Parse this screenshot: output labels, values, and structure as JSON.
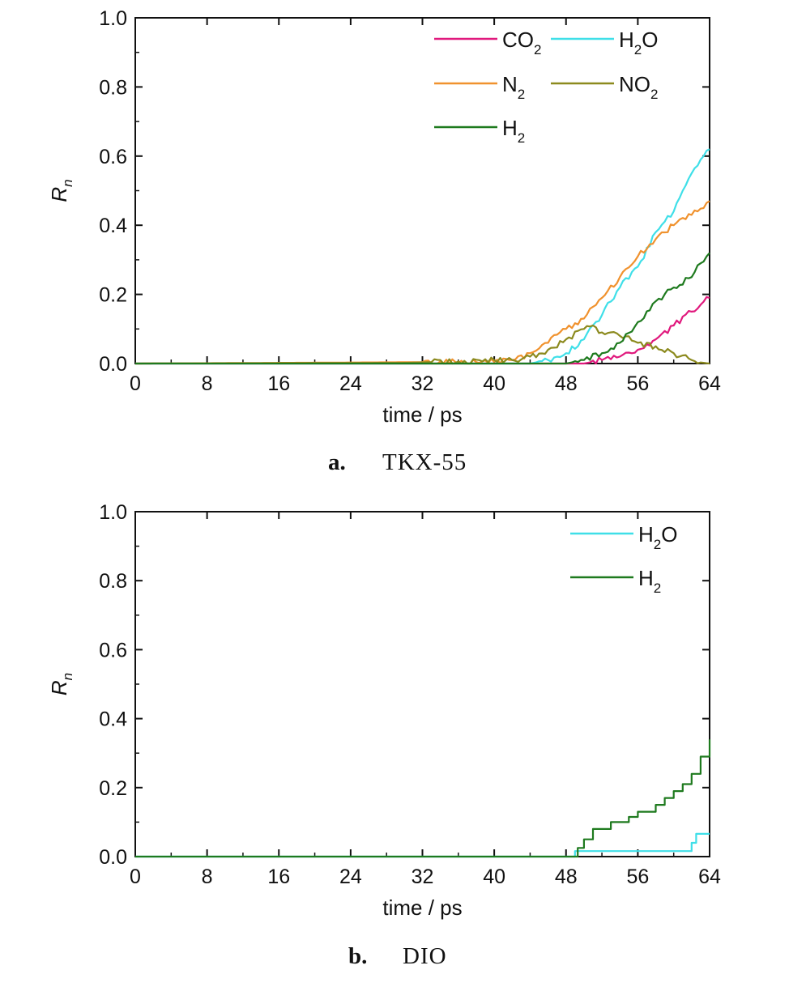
{
  "chart_data": [
    {
      "type": "line",
      "panel_label": "a.",
      "panel_name": "TKX-55",
      "xlabel": "time / ps",
      "ylabel": "R",
      "ylabel_sub": "n",
      "xlim": [
        0,
        64
      ],
      "ylim": [
        0,
        1.0
      ],
      "xticks": [
        "0",
        "8",
        "16",
        "24",
        "32",
        "40",
        "48",
        "56",
        "64"
      ],
      "yticks": [
        "0.0",
        "0.2",
        "0.4",
        "0.6",
        "0.8",
        "1.0"
      ],
      "grid": false,
      "legend_placement": "top-right",
      "series": [
        {
          "name": "CO",
          "name_sub": "2",
          "name_tail": "",
          "color": "#e0197d",
          "x": [
            0,
            50,
            52,
            54,
            56,
            58,
            60,
            62,
            63,
            64
          ],
          "y": [
            0,
            0,
            0.01,
            0.02,
            0.04,
            0.07,
            0.11,
            0.15,
            0.17,
            0.19
          ]
        },
        {
          "name": "H",
          "name_sub": "2",
          "name_tail": "O",
          "color": "#3fdfe8",
          "x": [
            0,
            44,
            46,
            48,
            50,
            52,
            54,
            56,
            58,
            60,
            61,
            62,
            63,
            64
          ],
          "y": [
            0,
            0,
            0.01,
            0.03,
            0.07,
            0.14,
            0.22,
            0.28,
            0.38,
            0.44,
            0.5,
            0.55,
            0.59,
            0.62
          ]
        },
        {
          "name": "N",
          "name_sub": "2",
          "name_tail": "",
          "color": "#f0922e",
          "x": [
            0,
            40,
            42,
            44,
            46,
            48,
            50,
            52,
            54,
            56,
            58,
            60,
            62,
            64
          ],
          "y": [
            0,
            0.005,
            0.01,
            0.03,
            0.06,
            0.1,
            0.13,
            0.19,
            0.25,
            0.31,
            0.36,
            0.4,
            0.43,
            0.47
          ]
        },
        {
          "name": "NO",
          "name_sub": "2",
          "name_tail": "",
          "color": "#8c8a1e",
          "x": [
            0,
            30,
            36,
            40,
            42,
            44,
            46,
            48,
            50,
            51,
            52,
            54,
            56,
            58,
            60,
            62,
            63,
            64
          ],
          "y": [
            0,
            0.002,
            0.006,
            0.01,
            0.01,
            0.02,
            0.04,
            0.07,
            0.1,
            0.11,
            0.09,
            0.08,
            0.06,
            0.05,
            0.03,
            0.01,
            0.003,
            0
          ]
        },
        {
          "name": "H",
          "name_sub": "2",
          "name_tail": "",
          "color": "#1e7a1e",
          "x": [
            0,
            48,
            50,
            52,
            54,
            56,
            58,
            60,
            62,
            63,
            64
          ],
          "y": [
            0,
            0,
            0.01,
            0.03,
            0.06,
            0.12,
            0.18,
            0.22,
            0.25,
            0.29,
            0.32
          ]
        }
      ]
    },
    {
      "type": "line",
      "panel_label": "b.",
      "panel_name": "DIO",
      "xlabel": "time / ps",
      "ylabel": "R",
      "ylabel_sub": "n",
      "xlim": [
        0,
        64
      ],
      "ylim": [
        0,
        1.0
      ],
      "xticks": [
        "0",
        "8",
        "16",
        "24",
        "32",
        "40",
        "48",
        "56",
        "64"
      ],
      "yticks": [
        "0.0",
        "0.2",
        "0.4",
        "0.6",
        "0.8",
        "1.0"
      ],
      "grid": false,
      "legend_placement": "top-right",
      "series": [
        {
          "name": "H",
          "name_sub": "2",
          "name_tail": "O",
          "color": "#3fdfe8",
          "step": true,
          "x": [
            0,
            48.8,
            49,
            61.6,
            62,
            62.5,
            64
          ],
          "y": [
            0,
            0,
            0.016,
            0.016,
            0.04,
            0.066,
            0.066
          ]
        },
        {
          "name": "H",
          "name_sub": "2",
          "name_tail": "",
          "color": "#1e7a1e",
          "step": true,
          "x": [
            0,
            48.8,
            49.3,
            50,
            51,
            53,
            55,
            56,
            58,
            59,
            60,
            61,
            62,
            63,
            64
          ],
          "y": [
            0,
            0,
            0.025,
            0.05,
            0.08,
            0.1,
            0.115,
            0.13,
            0.15,
            0.17,
            0.19,
            0.21,
            0.24,
            0.29,
            0.34
          ]
        }
      ]
    }
  ]
}
